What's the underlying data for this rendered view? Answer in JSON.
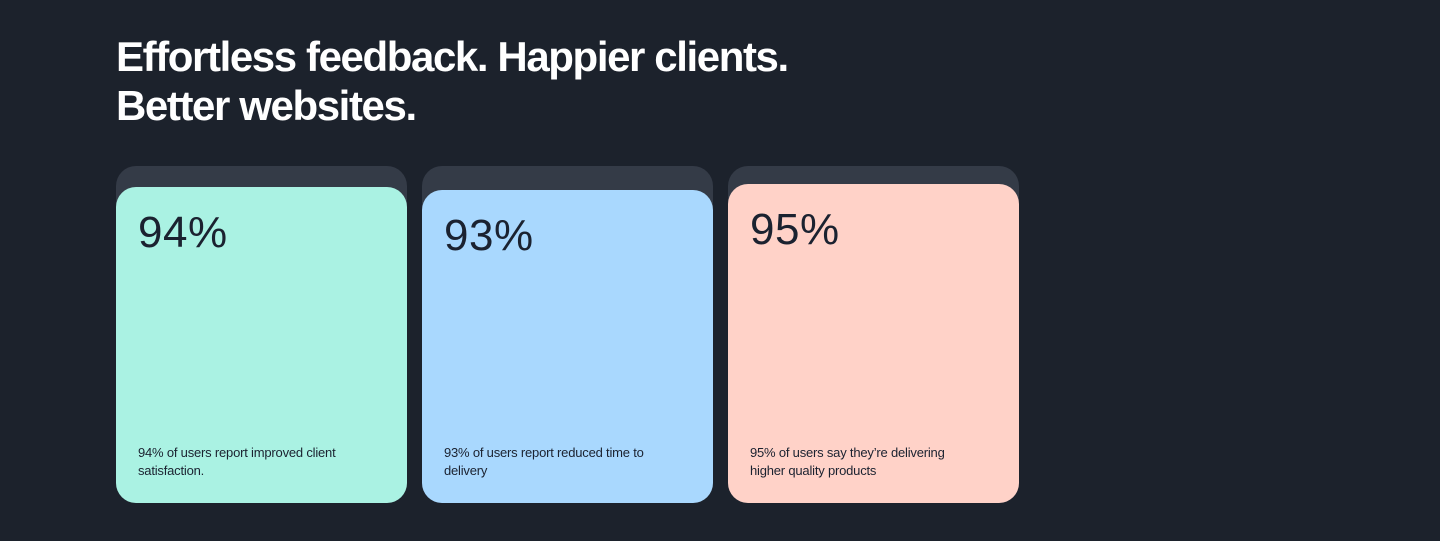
{
  "headline": {
    "line1": "Effortless feedback. Happier clients.",
    "line2": "Better websites."
  },
  "colors": {
    "background": "#1c222c",
    "card_back": "#343b47",
    "card_1": "#aaf2e3",
    "card_2": "#a9d8fe",
    "card_3": "#ffd2c8",
    "text_dark": "#1b2230"
  },
  "stats": [
    {
      "value": "94%",
      "description": "94% of users report improved client satisfaction."
    },
    {
      "value": "93%",
      "description": "93% of users report reduced time to delivery"
    },
    {
      "value": "95%",
      "description": "95% of users say they’re delivering higher quality products"
    }
  ]
}
